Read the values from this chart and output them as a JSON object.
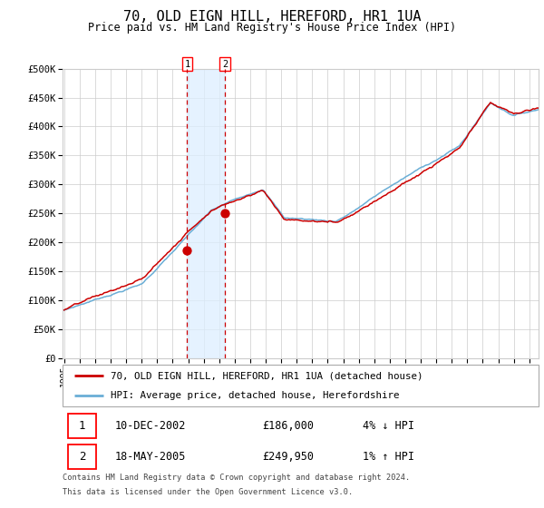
{
  "title": "70, OLD EIGN HILL, HEREFORD, HR1 1UA",
  "subtitle": "Price paid vs. HM Land Registry's House Price Index (HPI)",
  "sale1_date": "10-DEC-2002",
  "sale1_price": 186000,
  "sale1_label": "1",
  "sale1_x": 2002.94,
  "sale2_date": "18-MAY-2005",
  "sale2_price": 249950,
  "sale2_label": "2",
  "sale2_x": 2005.38,
  "legend_line1": "70, OLD EIGN HILL, HEREFORD, HR1 1UA (detached house)",
  "legend_line2": "HPI: Average price, detached house, Herefordshire",
  "table_row1": [
    "1",
    "10-DEC-2002",
    "£186,000",
    "4% ↓ HPI"
  ],
  "table_row2": [
    "2",
    "18-MAY-2005",
    "£249,950",
    "1% ↑ HPI"
  ],
  "footnote1": "Contains HM Land Registry data © Crown copyright and database right 2024.",
  "footnote2": "This data is licensed under the Open Government Licence v3.0.",
  "hpi_color": "#6aaed6",
  "price_color": "#cc0000",
  "marker_color": "#cc0000",
  "vline_color": "#cc0000",
  "shade_color": "#ddeeff",
  "grid_color": "#cccccc",
  "ylabel_values": [
    0,
    50000,
    100000,
    150000,
    200000,
    250000,
    300000,
    350000,
    400000,
    450000,
    500000
  ],
  "ylabels": [
    "£0",
    "£50K",
    "£100K",
    "£150K",
    "£200K",
    "£250K",
    "£300K",
    "£350K",
    "£400K",
    "£450K",
    "£500K"
  ],
  "ylim": [
    0,
    500000
  ],
  "xlim_start": 1994.9,
  "xlim_end": 2025.6,
  "background_color": "#ffffff"
}
